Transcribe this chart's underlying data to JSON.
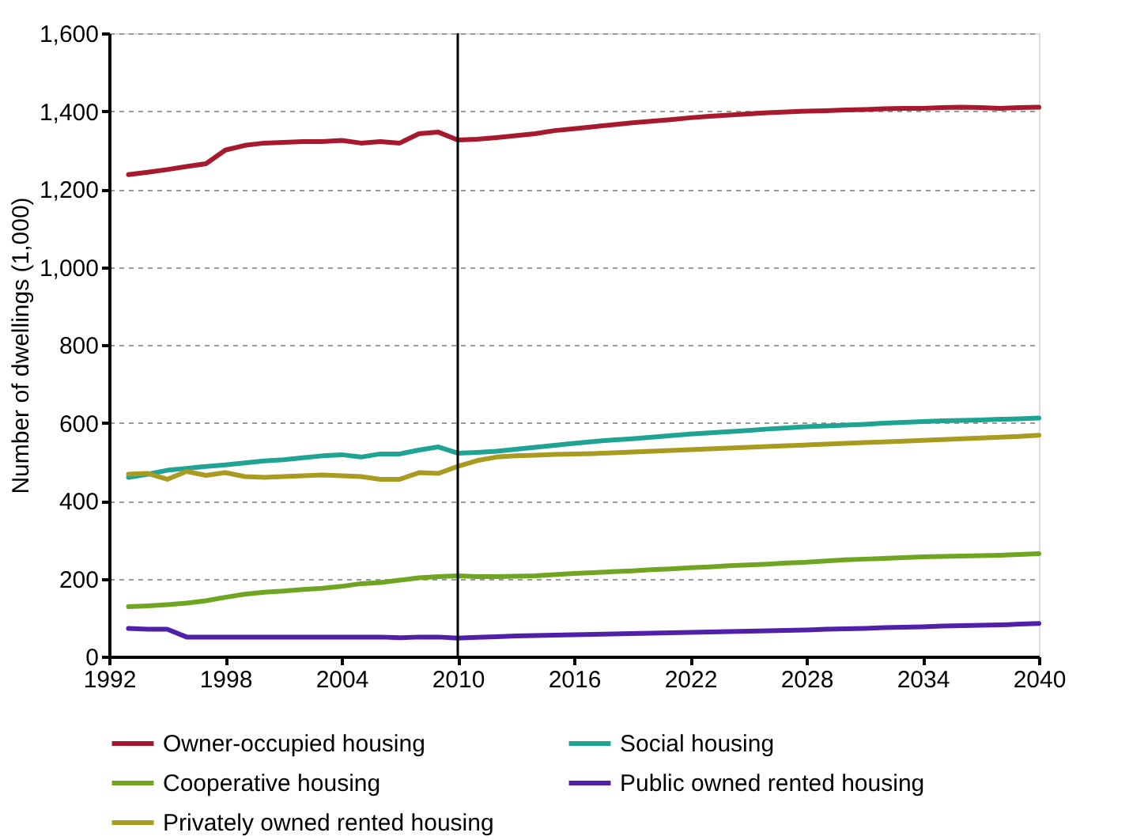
{
  "chart_data": {
    "type": "line",
    "ylabel": "Number of dwellings  (1,000)",
    "x": [
      1993,
      1994,
      1995,
      1996,
      1997,
      1998,
      1999,
      2000,
      2001,
      2002,
      2003,
      2004,
      2005,
      2006,
      2007,
      2008,
      2009,
      2010,
      2011,
      2012,
      2013,
      2014,
      2015,
      2016,
      2017,
      2018,
      2019,
      2020,
      2021,
      2022,
      2023,
      2024,
      2025,
      2026,
      2027,
      2028,
      2029,
      2030,
      2031,
      2032,
      2033,
      2034,
      2035,
      2036,
      2037,
      2038,
      2039,
      2040
    ],
    "series": [
      {
        "name": "Owner-occupied housing",
        "color": "#a6192e",
        "values": [
          1237,
          1243,
          1250,
          1258,
          1265,
          1300,
          1312,
          1318,
          1320,
          1322,
          1322,
          1325,
          1318,
          1322,
          1318,
          1342,
          1346,
          1326,
          1328,
          1332,
          1337,
          1342,
          1350,
          1355,
          1360,
          1365,
          1370,
          1374,
          1378,
          1383,
          1387,
          1390,
          1393,
          1396,
          1398,
          1400,
          1401,
          1403,
          1404,
          1406,
          1407,
          1407,
          1409,
          1410,
          1409,
          1407,
          1409,
          1410
        ]
      },
      {
        "name": "Social housing",
        "color": "#1fa394",
        "values": [
          460,
          468,
          478,
          483,
          488,
          492,
          497,
          502,
          505,
          510,
          515,
          518,
          512,
          520,
          520,
          530,
          538,
          522,
          524,
          527,
          532,
          537,
          542,
          547,
          552,
          556,
          559,
          563,
          567,
          571,
          574,
          577,
          580,
          584,
          587,
          590,
          592,
          594,
          596,
          599,
          601,
          603,
          605,
          606,
          607,
          609,
          610,
          612
        ]
      },
      {
        "name": "Cooperative housing",
        "color": "#6fa521",
        "values": [
          128,
          130,
          133,
          137,
          143,
          152,
          160,
          165,
          168,
          172,
          175,
          180,
          187,
          190,
          196,
          202,
          205,
          207,
          205,
          205,
          206,
          207,
          210,
          213,
          215,
          218,
          220,
          223,
          225,
          228,
          230,
          233,
          235,
          237,
          240,
          242,
          245,
          248,
          250,
          252,
          254,
          256,
          257,
          258,
          259,
          260,
          262,
          264
        ]
      },
      {
        "name": "Public owned rented housing",
        "color": "#5020a8",
        "values": [
          72,
          70,
          70,
          50,
          50,
          50,
          50,
          50,
          50,
          50,
          50,
          50,
          50,
          50,
          48,
          50,
          50,
          47,
          49,
          51,
          53,
          54,
          55,
          56,
          57,
          58,
          59,
          60,
          61,
          62,
          63,
          64,
          65,
          66,
          67,
          68,
          70,
          71,
          72,
          74,
          75,
          76,
          78,
          79,
          80,
          81,
          83,
          85
        ]
      },
      {
        "name": "Privately owned rented housing",
        "color": "#a99a20",
        "values": [
          468,
          470,
          455,
          475,
          465,
          472,
          462,
          460,
          462,
          464,
          466,
          464,
          462,
          455,
          455,
          472,
          470,
          488,
          503,
          512,
          515,
          517,
          519,
          520,
          521,
          523,
          525,
          527,
          529,
          531,
          533,
          535,
          537,
          539,
          541,
          543,
          545,
          547,
          549,
          551,
          553,
          555,
          557,
          559,
          561,
          563,
          565,
          568
        ]
      }
    ],
    "xlim": [
      1992,
      2040
    ],
    "xticks": [
      1992,
      1998,
      2004,
      2010,
      2016,
      2022,
      2028,
      2034,
      2040
    ],
    "ylim": [
      0,
      1600
    ],
    "yticks": [
      0,
      200,
      400,
      600,
      800,
      {
        "value": 1000,
        "label": "1,000"
      },
      {
        "value": 1200,
        "label": "1,200"
      },
      {
        "value": 1400,
        "label": "1,400"
      },
      {
        "value": 1600,
        "label": "1,600"
      }
    ],
    "ref_lines": [
      {
        "axis": "x",
        "value": 2010,
        "color": "#000000"
      }
    ],
    "grid": "y",
    "legend": "bottom",
    "marker": "none",
    "line_style": "solid"
  }
}
